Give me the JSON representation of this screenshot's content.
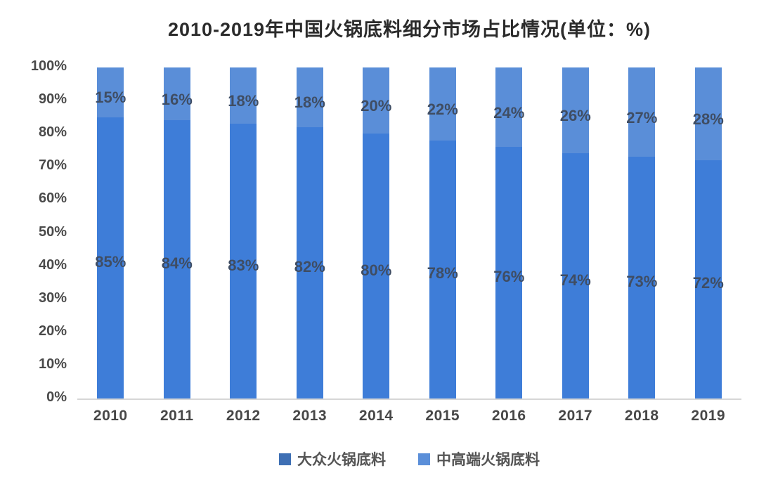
{
  "title": "2010-2019年中国火锅底料细分市场占比情况(单位：%)",
  "chart_data": {
    "type": "bar",
    "stacked": true,
    "percent_stacked": true,
    "title": "2010-2019年中国火锅底料细分市场占比情况(单位：%)",
    "categories": [
      "2010",
      "2011",
      "2012",
      "2013",
      "2014",
      "2015",
      "2016",
      "2017",
      "2018",
      "2019"
    ],
    "series": [
      {
        "name": "大众火锅底料",
        "color": "#3e7dd8",
        "legend_color": "#3e6fb4",
        "values": [
          85,
          84,
          83,
          82,
          80,
          78,
          76,
          74,
          73,
          72
        ],
        "labels": [
          "85%",
          "84%",
          "83%",
          "82%",
          "80%",
          "78%",
          "76%",
          "74%",
          "73%",
          "72%"
        ]
      },
      {
        "name": "中高端火锅底料",
        "color": "#5a8ed8",
        "legend_color": "#5b8fd9",
        "values": [
          15,
          16,
          18,
          18,
          20,
          22,
          24,
          26,
          27,
          28
        ],
        "labels": [
          "15%",
          "16%",
          "18%",
          "18%",
          "20%",
          "22%",
          "24%",
          "26%",
          "27%",
          "28%"
        ]
      }
    ],
    "y_ticks": [
      "100%",
      "90%",
      "80%",
      "70%",
      "60%",
      "50%",
      "40%",
      "30%",
      "20%",
      "10%",
      "0%"
    ],
    "ylim": [
      0,
      100
    ],
    "grid": false,
    "legend_position": "bottom"
  },
  "colors": {
    "axis_line": "#d6d6d6",
    "tick_text": "#4a4a4a",
    "data_label_text": "#3f4d63",
    "title_text": "#2b2b2b",
    "background": "#ffffff"
  }
}
